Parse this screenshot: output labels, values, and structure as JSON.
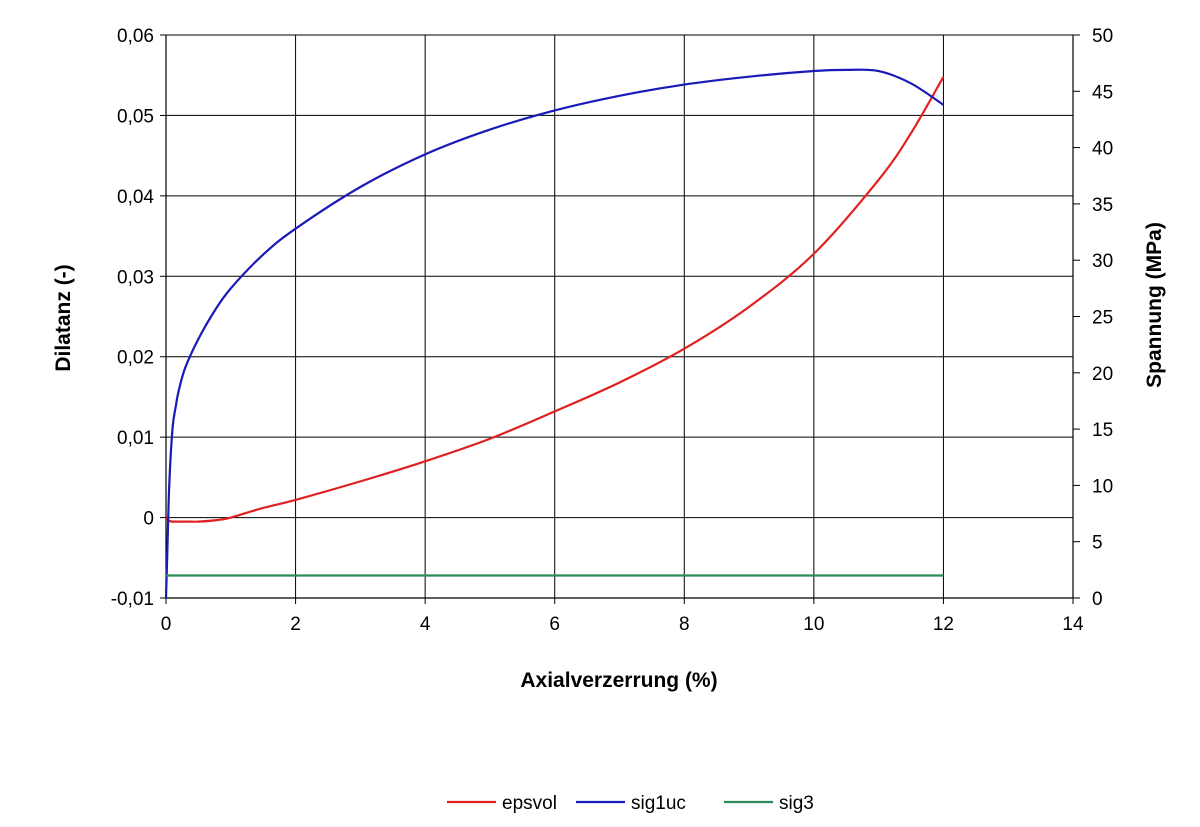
{
  "chart_data": {
    "type": "line",
    "title": "",
    "xlabel": "Axialverzerrung (%)",
    "ylabel_left": "Dilatanz (-)",
    "ylabel_right": "Spannung (MPa)",
    "xlim": [
      0,
      14
    ],
    "ylim_left": [
      -0.01,
      0.06
    ],
    "ylim_right": [
      0,
      50
    ],
    "x_ticks": [
      "0",
      "2",
      "4",
      "6",
      "8",
      "10",
      "12",
      "14"
    ],
    "y_left_ticks": [
      "-0,01",
      "0",
      "0,01",
      "0,02",
      "0,03",
      "0,04",
      "0,05",
      "0,06"
    ],
    "y_right_ticks": [
      "0",
      "5",
      "10",
      "15",
      "20",
      "25",
      "30",
      "35",
      "40",
      "45",
      "50"
    ],
    "grid": true,
    "legend_position": "bottom",
    "series": [
      {
        "name": "epsvol",
        "axis": "left",
        "color": "#e02020",
        "x": [
          0,
          0.05,
          0.1,
          0.3,
          0.5,
          0.8,
          1,
          1.5,
          2,
          3,
          4,
          5,
          6,
          7,
          8,
          9,
          10,
          11,
          11.5,
          12
        ],
        "y": [
          0,
          -0.0004,
          -0.0005,
          -0.0005,
          -0.0005,
          -0.0003,
          0,
          0.0012,
          0.0022,
          0.0045,
          0.007,
          0.0098,
          0.0132,
          0.0168,
          0.021,
          0.0262,
          0.0328,
          0.042,
          0.0478,
          0.0548
        ]
      },
      {
        "name": "sig1uc",
        "axis": "right",
        "color": "#1a1ab8",
        "x": [
          0,
          0.02,
          0.05,
          0.1,
          0.15,
          0.2,
          0.3,
          0.5,
          0.75,
          1,
          1.5,
          2,
          3,
          4,
          5,
          6,
          7,
          8,
          9,
          10,
          10.5,
          11,
          11.5,
          12
        ],
        "y": [
          0,
          4,
          10,
          15,
          17,
          18.5,
          20.5,
          23,
          25.5,
          27.5,
          30.5,
          32.8,
          36.5,
          39.4,
          41.6,
          43.3,
          44.6,
          45.6,
          46.3,
          46.8,
          46.9,
          46.8,
          45.7,
          43.8
        ]
      },
      {
        "name": "sig3",
        "axis": "right",
        "color": "#2e8b57",
        "x": [
          0,
          12
        ],
        "y": [
          2,
          2
        ]
      }
    ]
  }
}
